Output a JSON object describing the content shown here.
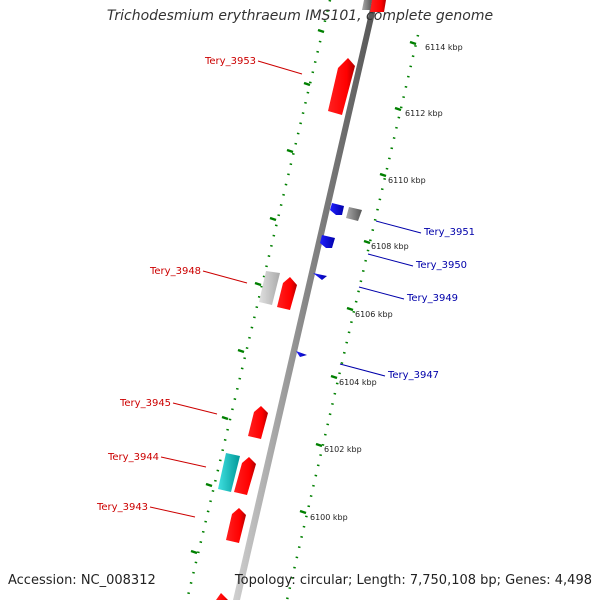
{
  "title": "Trichodesmium erythraeum IMS101, complete genome",
  "footer": {
    "accession": "Accession: NC_008312",
    "summary": "Topology: circular; Length: 7,750,108 bp; Genes: 4,498"
  },
  "colors": {
    "forward_gene": "#ff0000",
    "reverse_gene": "#0000ff",
    "gray_gene": "#808080",
    "light_gray_gene": "#cccccc",
    "cyan_gene": "#00cccc",
    "label_forward": "#cc0000",
    "label_reverse": "#0000aa",
    "tick": "#008000",
    "backbone": "#888888"
  },
  "scale_ticks": [
    "6100 kbp",
    "6102 kbp",
    "6104 kbp",
    "6106 kbp",
    "6108 kbp",
    "6110 kbp",
    "6112 kbp",
    "6114 kbp"
  ],
  "gene_labels_forward": [
    "Tery_3953",
    "Tery_3948",
    "Tery_3945",
    "Tery_3944",
    "Tery_3943"
  ],
  "gene_labels_reverse": [
    "Tery_3951",
    "Tery_3950",
    "Tery_3949",
    "Tery_3947"
  ]
}
